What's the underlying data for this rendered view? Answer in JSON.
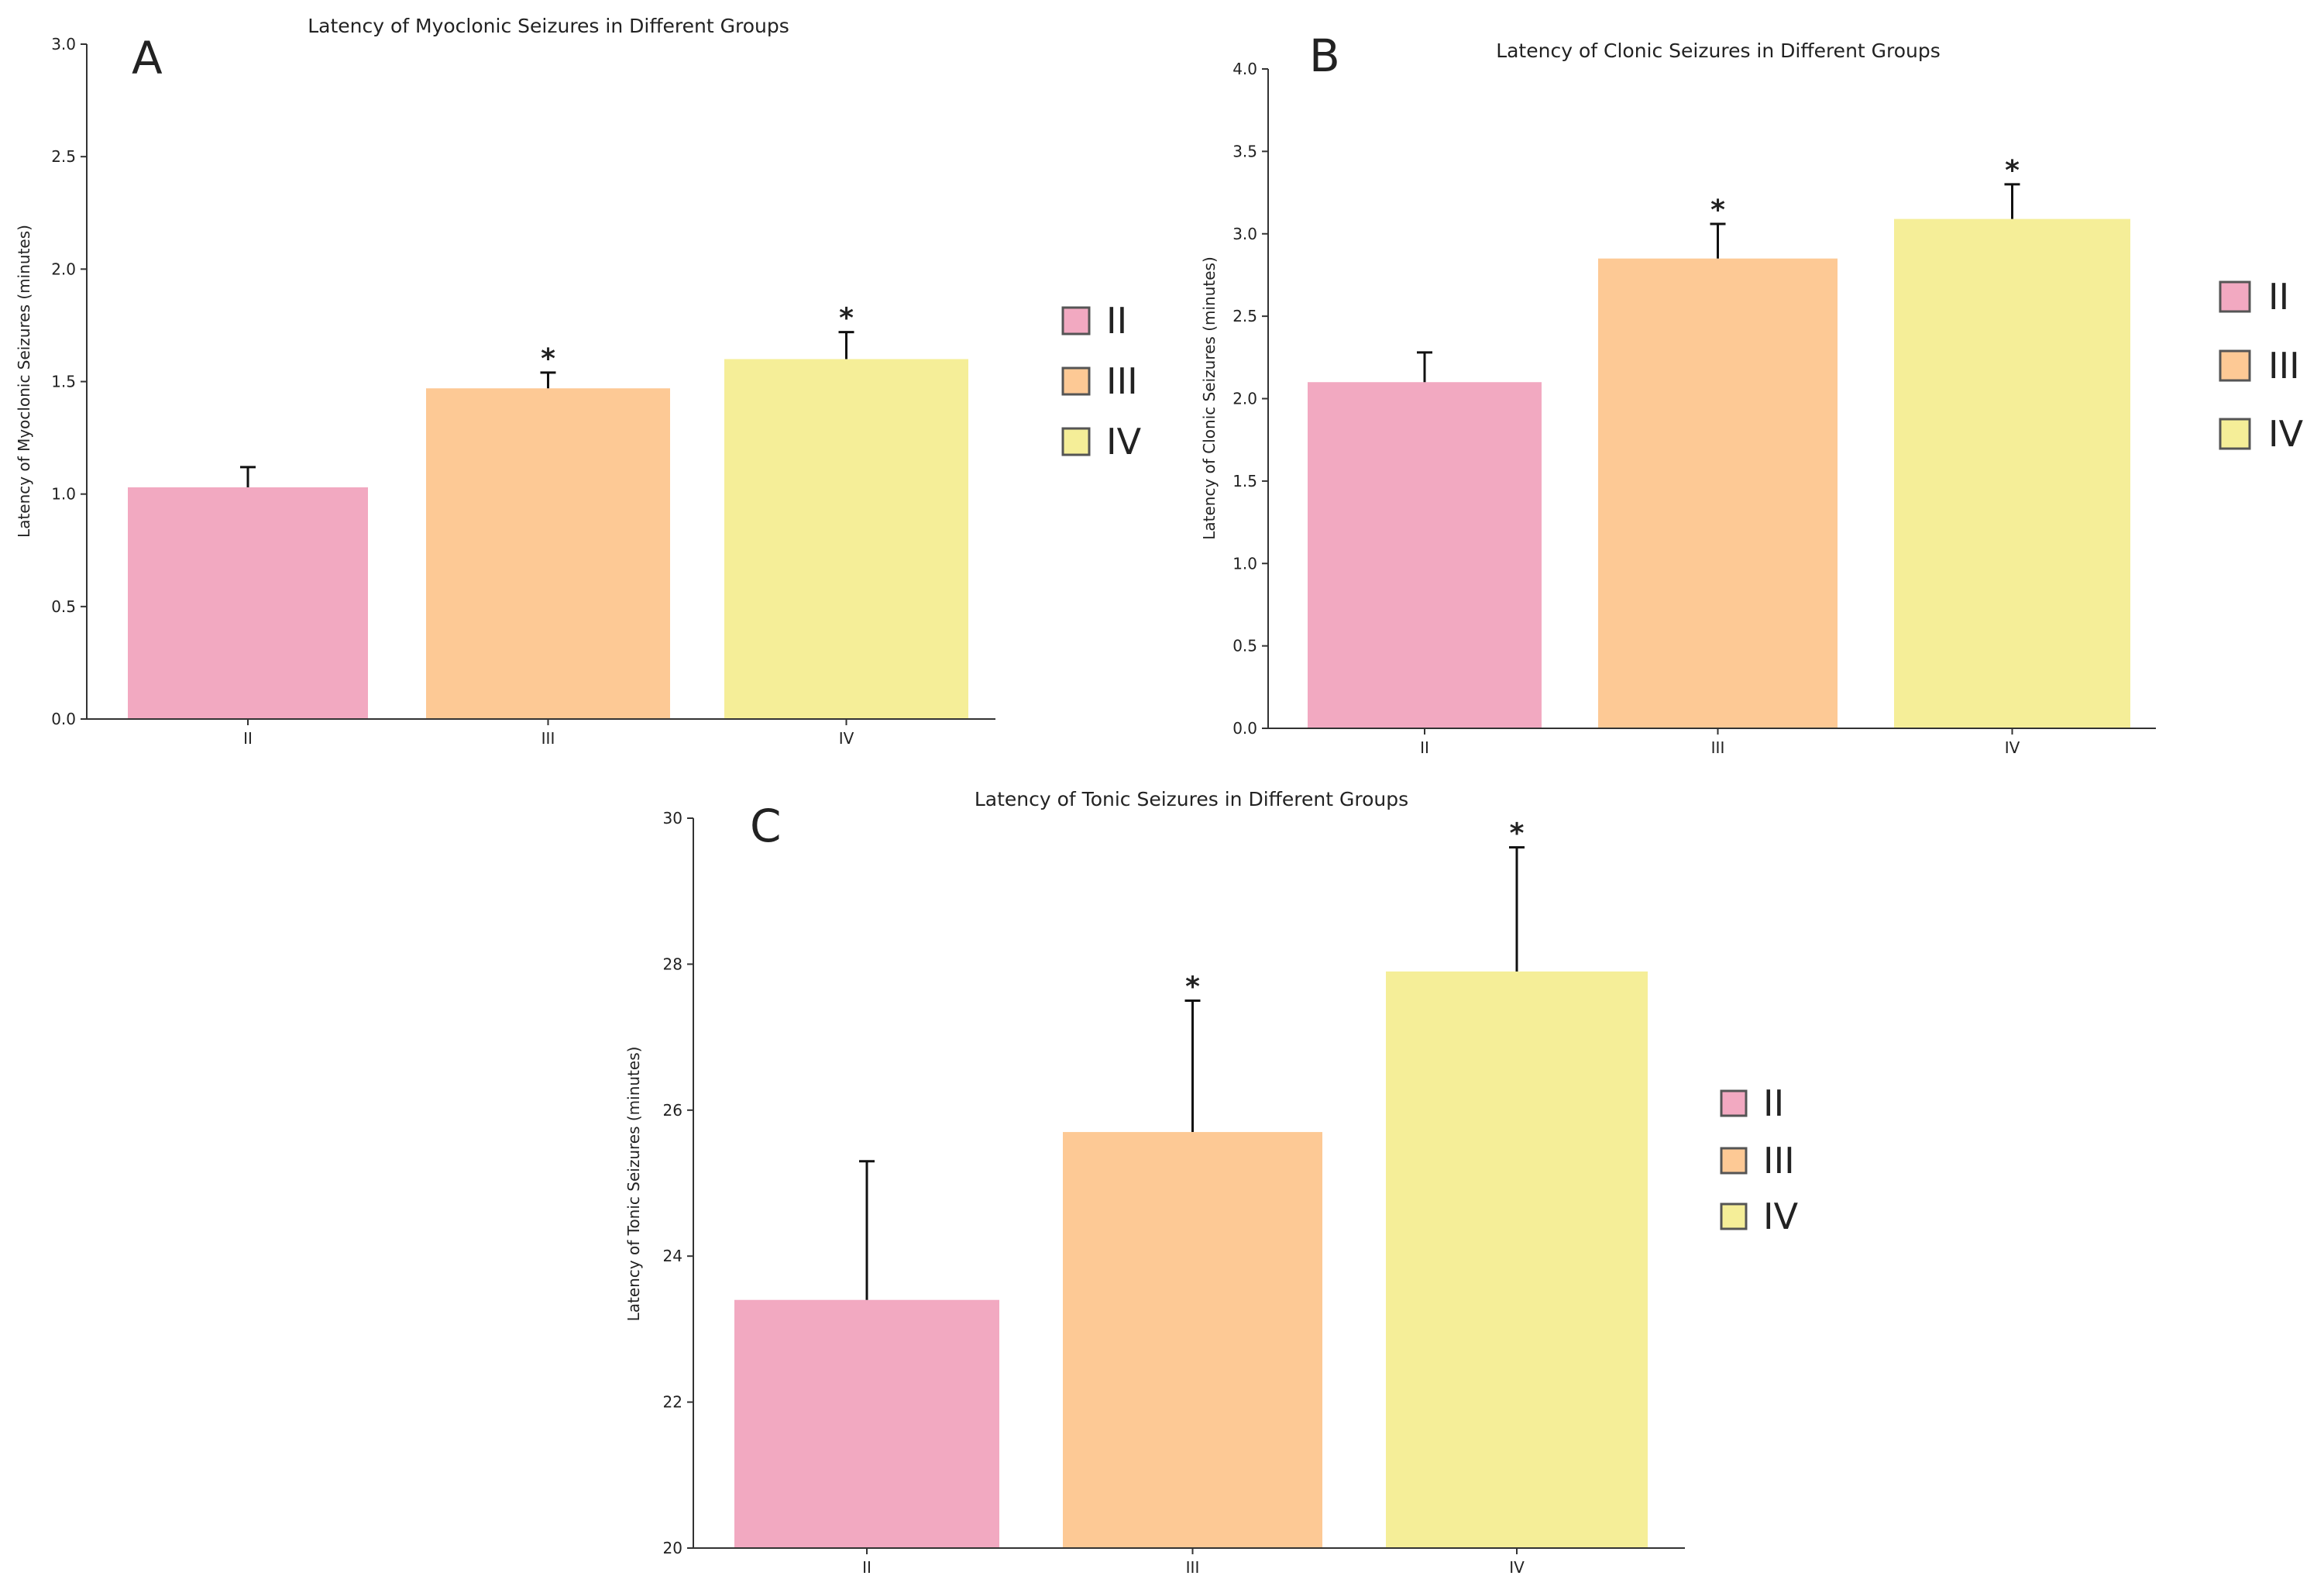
{
  "chart_data": [
    {
      "type": "bar",
      "panel_label": "A",
      "title": "Latency of Myoclonic Seizures in Different Groups",
      "xlabel": "",
      "ylabel": "Latency of Myoclonic Seizures (minutes)",
      "categories": [
        "II",
        "III",
        "IV"
      ],
      "values": [
        1.03,
        1.47,
        1.6
      ],
      "errors": [
        0.09,
        0.07,
        0.12
      ],
      "significance": [
        "",
        "*",
        "*"
      ],
      "ylim": [
        0,
        3.0
      ],
      "yticks": [
        "0.0",
        "0.5",
        "1.0",
        "1.5",
        "2.0",
        "2.5",
        "3.0"
      ],
      "colors": [
        "#F2A9C1",
        "#FDC995",
        "#F5EE98"
      ],
      "legend": [
        "II",
        "III",
        "IV"
      ],
      "legend_position": "right"
    },
    {
      "type": "bar",
      "panel_label": "B",
      "title": "Latency of Clonic Seizures in Different Groups",
      "xlabel": "",
      "ylabel": "Latency of Clonic Seizures (minutes)",
      "categories": [
        "II",
        "III",
        "IV"
      ],
      "values": [
        2.1,
        2.85,
        3.09
      ],
      "errors": [
        0.18,
        0.21,
        0.21
      ],
      "significance": [
        "",
        "*",
        "*"
      ],
      "ylim": [
        0,
        4.0
      ],
      "yticks": [
        "0.0",
        "0.5",
        "1.0",
        "1.5",
        "2.0",
        "2.5",
        "3.0",
        "3.5",
        "4.0"
      ],
      "colors": [
        "#F2A9C1",
        "#FDC995",
        "#F5EE98"
      ],
      "legend": [
        "II",
        "III",
        "IV"
      ],
      "legend_position": "right"
    },
    {
      "type": "bar",
      "panel_label": "C",
      "title": "Latency of Tonic Seizures in Different Groups",
      "xlabel": "",
      "ylabel": "Latency of Tonic Seizures (minutes)",
      "categories": [
        "II",
        "III",
        "IV"
      ],
      "values": [
        23.4,
        25.7,
        27.9
      ],
      "errors": [
        1.9,
        1.8,
        1.7
      ],
      "significance": [
        "",
        "*",
        "*"
      ],
      "ylim": [
        20,
        30
      ],
      "yticks": [
        "20",
        "22",
        "24",
        "26",
        "28",
        "30"
      ],
      "colors": [
        "#F2A9C1",
        "#FDC995",
        "#F5EE98"
      ],
      "legend": [
        "II",
        "III",
        "IV"
      ],
      "legend_position": "right"
    }
  ]
}
